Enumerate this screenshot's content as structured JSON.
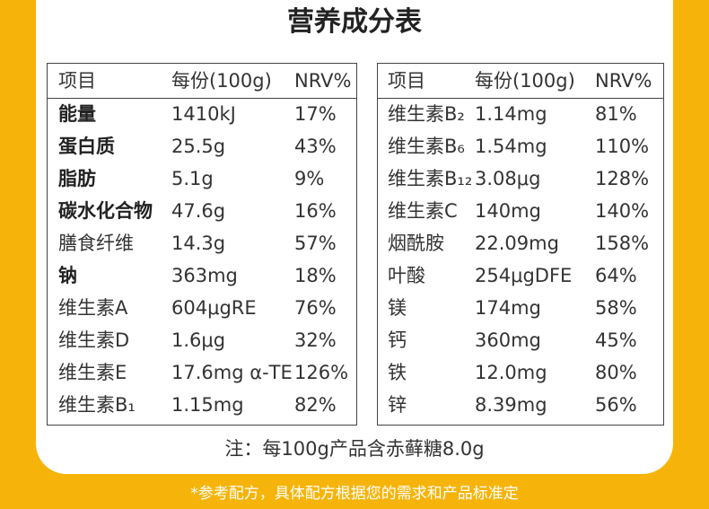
{
  "header": {
    "title": "营养成分表"
  },
  "tables": [
    {
      "columns": [
        "项目",
        "每份(100g)",
        "NRV%"
      ],
      "rows": [
        [
          "能量",
          "1410kJ",
          "17%"
        ],
        [
          "蛋白质",
          "25.5g",
          "43%"
        ],
        [
          "脂肪",
          "5.1g",
          "9%"
        ],
        [
          "碳水化合物",
          "47.6g",
          "16%"
        ],
        [
          "膳食纤维",
          "14.3g",
          "57%"
        ],
        [
          "钠",
          "363mg",
          "18%"
        ],
        [
          "维生素A",
          "604μgRE",
          "76%"
        ],
        [
          "维生素D",
          "1.6μg",
          "32%"
        ],
        [
          "维生素E",
          "17.6mg α-TE",
          "126%"
        ],
        [
          "维生素B₁",
          "1.15mg",
          "82%"
        ]
      ]
    },
    {
      "columns": [
        "项目",
        "每份(100g)",
        "NRV%"
      ],
      "rows": [
        [
          "维生素B₂",
          "1.14mg",
          "81%"
        ],
        [
          "维生素B₆",
          "1.54mg",
          "110%"
        ],
        [
          "维生素B₁₂",
          "3.08μg",
          "128%"
        ],
        [
          "维生素C",
          "140mg",
          "140%"
        ],
        [
          "烟酰胺",
          "22.09mg",
          "158%"
        ],
        [
          "叶酸",
          "254μgDFE",
          "64%"
        ],
        [
          "镁",
          "174mg",
          "58%"
        ],
        [
          "钙",
          "360mg",
          "45%"
        ],
        [
          "铁",
          "12.0mg",
          "80%"
        ],
        [
          "锌",
          "8.39mg",
          "56%"
        ]
      ]
    }
  ],
  "note": "注：每100g产品含赤藓糖8.0g",
  "footer": "*参考配方，具体配方根据您的需求和产品标准定"
}
